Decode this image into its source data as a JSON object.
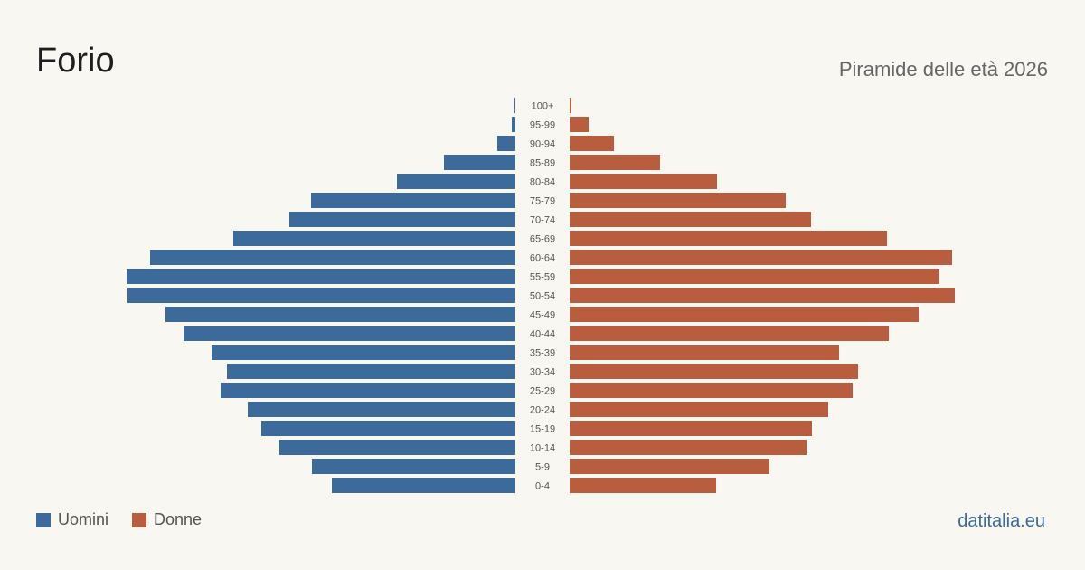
{
  "title": "Forio",
  "subtitle": "Piramide delle età 2026",
  "source": "datitalia.eu",
  "colors": {
    "men": "#3b6a9b",
    "women": "#b85e3f",
    "source": "#3b6a9b"
  },
  "legend": {
    "men_label": "Uomini",
    "women_label": "Donne"
  },
  "chart_data": {
    "type": "bar",
    "orientation": "horizontal",
    "categories": [
      "100+",
      "95-99",
      "90-94",
      "85-89",
      "80-84",
      "75-79",
      "70-74",
      "65-69",
      "60-64",
      "55-59",
      "50-54",
      "45-49",
      "40-44",
      "35-39",
      "30-34",
      "25-29",
      "20-24",
      "15-19",
      "10-14",
      "5-9",
      "0-4"
    ],
    "series": [
      {
        "name": "Uomini",
        "values": [
          1,
          4,
          20,
          79,
          131,
          226,
          250,
          312,
          404,
          430,
          429,
          387,
          367,
          336,
          319,
          326,
          296,
          281,
          261,
          225,
          203
        ]
      },
      {
        "name": "Donne",
        "values": [
          2,
          21,
          49,
          100,
          163,
          239,
          267,
          351,
          423,
          409,
          426,
          386,
          353,
          298,
          319,
          313,
          286,
          268,
          262,
          221,
          162
        ]
      }
    ],
    "xlim": [
      0,
      430
    ],
    "legend": "bottom-left",
    "grid": false
  }
}
